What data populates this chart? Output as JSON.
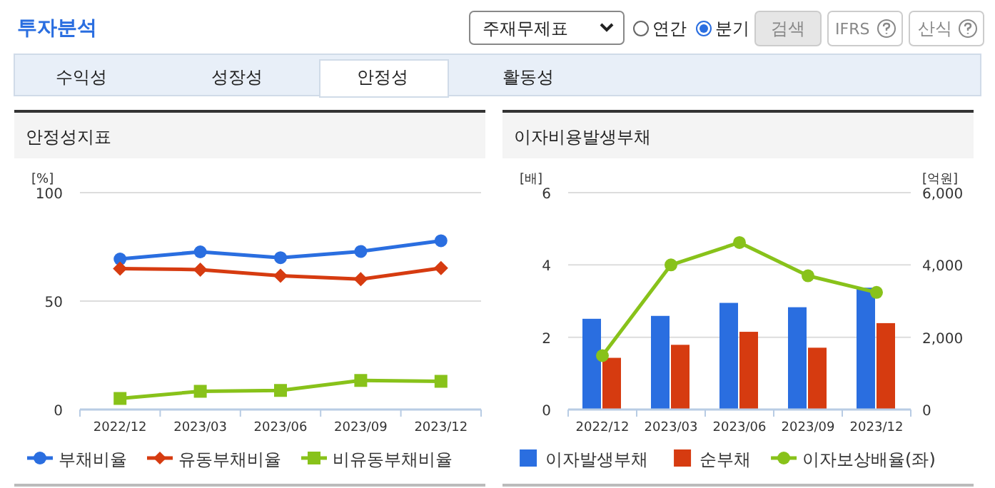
{
  "chart_data": [
    {
      "type": "other",
      "title": "투자분석",
      "annotations": [
        "주재무제표",
        "연간",
        "분기",
        "검색",
        "IFRS",
        "산식",
        "수익성",
        "성장성",
        "안정성",
        "활동성"
      ]
    },
    {
      "type": "line",
      "title": "안정성지표",
      "ylabel": "[%]",
      "categories": [
        "2022/12",
        "2023/03",
        "2023/06",
        "2023/09",
        "2023/12"
      ],
      "ylim": [
        0,
        100
      ],
      "yticks": [
        0,
        50,
        100
      ],
      "grid": "y",
      "legend": "bottom",
      "series": [
        {
          "name": "부채비율",
          "color": "#2a6ee0",
          "marker": "circle",
          "values": [
            69.4,
            72.7,
            70.0,
            72.9,
            77.8
          ]
        },
        {
          "name": "유동부채비율",
          "color": "#d63b10",
          "marker": "diamond",
          "values": [
            65.0,
            64.5,
            61.7,
            60.1,
            65.2
          ]
        },
        {
          "name": "비유동부채비율",
          "color": "#88c21a",
          "marker": "square",
          "values": [
            5.1,
            8.4,
            8.8,
            13.4,
            13.0
          ]
        }
      ]
    },
    {
      "type": "bar",
      "title": "이자비용발생부채",
      "ylabel": "[배]",
      "y2label": "[억원]",
      "categories": [
        "2022/12",
        "2023/03",
        "2023/06",
        "2023/09",
        "2023/12"
      ],
      "ylim": [
        0,
        6
      ],
      "yticks": [
        0,
        2,
        4,
        6
      ],
      "y2lim": [
        0,
        6000
      ],
      "y2ticks": [
        0,
        {
          "value": 2000,
          "label": "2,000"
        },
        {
          "value": 4000,
          "label": "4,000"
        },
        {
          "value": 6000,
          "label": "6,000"
        }
      ],
      "grid": "y",
      "legend": "bottom",
      "series": [
        {
          "name": "이자발생부채",
          "color": "#2a6ee0",
          "axis": "y2",
          "values": [
            2510,
            2590,
            2950,
            2830,
            3370
          ]
        },
        {
          "name": "순부채",
          "color": "#d63b10",
          "axis": "y2",
          "values": [
            1430,
            1790,
            2150,
            1710,
            2390
          ]
        },
        {
          "name": "이자보상배율(좌)",
          "type": "line",
          "color": "#88c21a",
          "marker": "circle",
          "values": [
            1.49,
            4.0,
            4.62,
            3.7,
            3.24
          ]
        }
      ]
    }
  ]
}
